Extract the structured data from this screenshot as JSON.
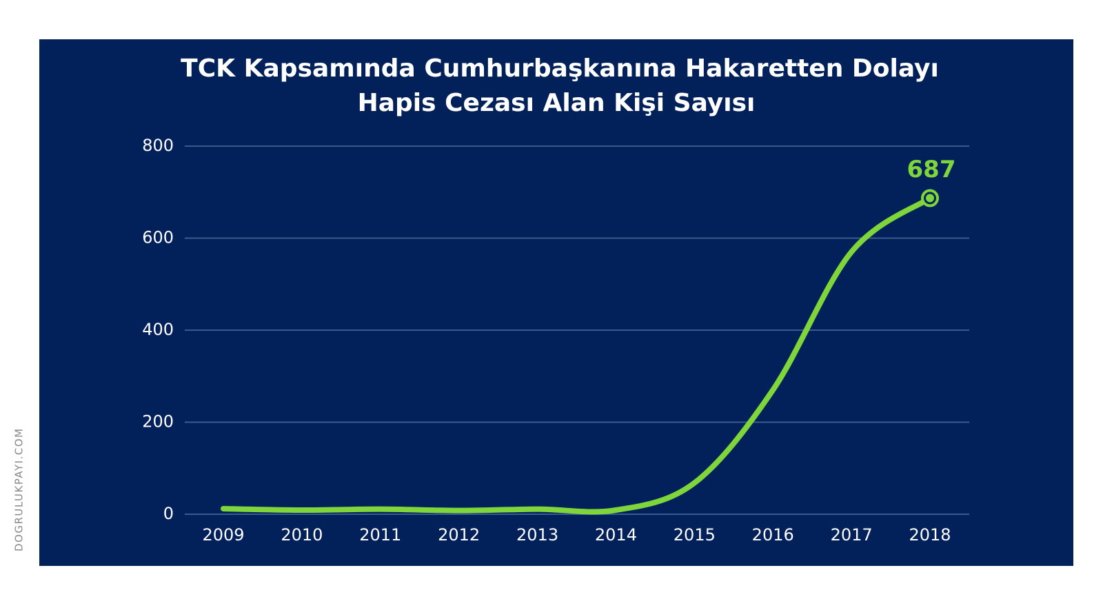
{
  "watermark": "DOGRULUKPAYI.COM",
  "chart_data": {
    "type": "line",
    "title": "TCK Kapsamında Cumhurbaşkanına Hakaretten Dolayı",
    "subtitle": "Hapis Cezası Alan Kişi Sayısı",
    "categories": [
      "2009",
      "2010",
      "2011",
      "2012",
      "2013",
      "2014",
      "2015",
      "2016",
      "2017",
      "2018"
    ],
    "series": [
      {
        "name": "Hapis cezası alan kişi sayısı",
        "color": "#7ed63a",
        "values": [
          12,
          9,
          11,
          8,
          11,
          9,
          68,
          270,
          570,
          687
        ]
      }
    ],
    "ylim": [
      0,
      800
    ],
    "yticks": [
      0,
      200,
      400,
      600,
      800
    ],
    "grid": true,
    "labeled_point": 9
  }
}
